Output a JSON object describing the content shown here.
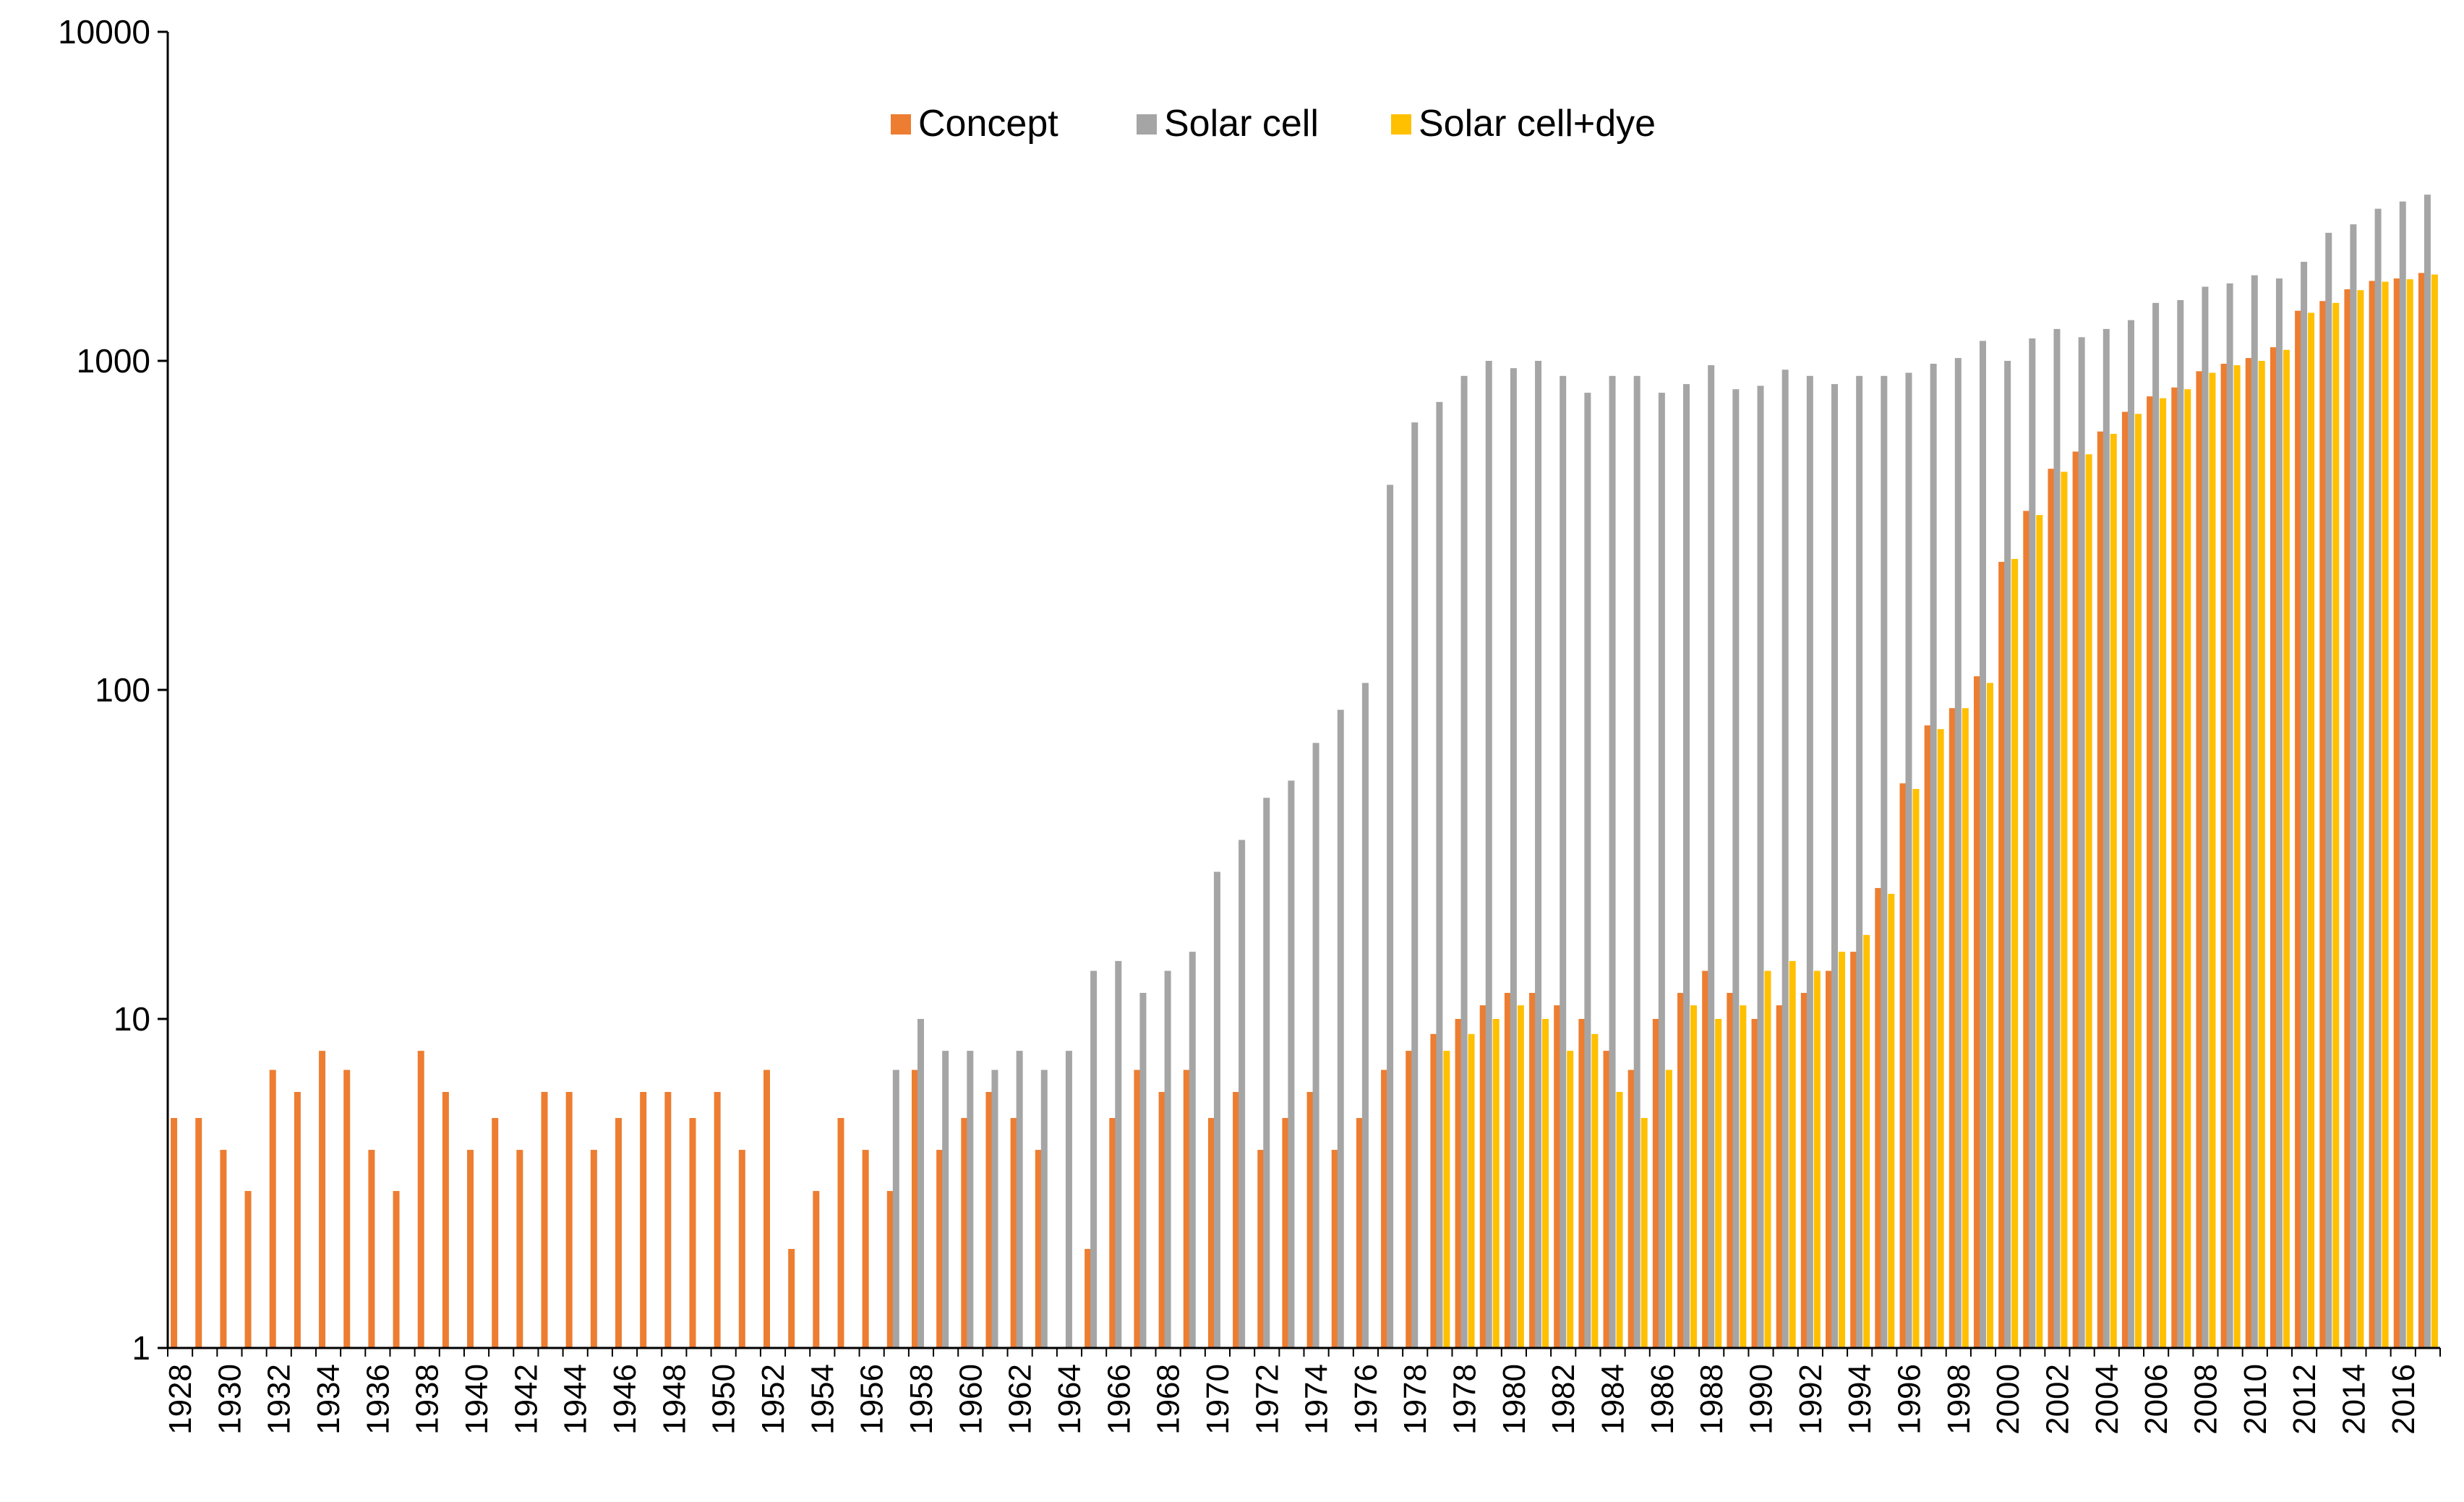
{
  "chart_data": {
    "type": "bar",
    "log_scale": true,
    "grid": false,
    "legend": "top-center",
    "categories": [
      "1928",
      null,
      "1930",
      null,
      "1932",
      null,
      "1934",
      null,
      "1936",
      null,
      "1938",
      null,
      "1940",
      null,
      "1942",
      null,
      "1944",
      null,
      "1946",
      null,
      "1948",
      null,
      "1950",
      null,
      "1952",
      null,
      "1954",
      null,
      "1956",
      null,
      "1958",
      null,
      "1960",
      null,
      "1962",
      null,
      "1964",
      null,
      "1966",
      null,
      "1968",
      null,
      "1970",
      null,
      "1972",
      null,
      "1974",
      null,
      "1976",
      null,
      "1978",
      null,
      "1978",
      null,
      "1980",
      null,
      "1982",
      null,
      "1984",
      null,
      "1986",
      null,
      "1988",
      null,
      "1990",
      null,
      "1992",
      null,
      "1994",
      null,
      "1996",
      null,
      "1998",
      null,
      "2000",
      null,
      "2002",
      null,
      "2004",
      null,
      "2006",
      null,
      "2008",
      null,
      "2010",
      null,
      "2012",
      null,
      "2014",
      null,
      "2016",
      null
    ],
    "series": [
      {
        "name": "Concept",
        "color": "#ed7d31",
        "values": [
          5,
          5,
          4,
          3,
          7,
          6,
          8,
          7,
          4,
          3,
          8,
          6,
          4,
          5,
          4,
          6,
          6,
          4,
          5,
          6,
          6,
          5,
          6,
          4,
          7,
          2,
          3,
          5,
          4,
          3,
          7,
          4,
          5,
          6,
          5,
          4,
          null,
          2,
          5,
          7,
          6,
          7,
          5,
          6,
          4,
          5,
          6,
          4,
          5,
          7,
          8,
          9,
          10,
          11,
          12,
          12,
          11,
          10,
          8,
          7,
          10,
          12,
          14,
          12,
          10,
          11,
          12,
          14,
          16,
          25,
          52,
          78,
          88,
          110,
          245,
          350,
          470,
          530,
          610,
          700,
          780,
          830,
          930,
          980,
          1020,
          1100,
          1420,
          1520,
          1650,
          1750,
          1780,
          1850
        ]
      },
      {
        "name": "Solar cell",
        "color": "#a5a5a5",
        "values": [
          null,
          null,
          null,
          null,
          null,
          null,
          null,
          null,
          null,
          null,
          null,
          null,
          null,
          null,
          null,
          null,
          null,
          null,
          null,
          null,
          null,
          null,
          null,
          null,
          null,
          null,
          null,
          null,
          null,
          7,
          10,
          8,
          8,
          7,
          8,
          7,
          8,
          14,
          15,
          12,
          14,
          16,
          28,
          35,
          47,
          53,
          69,
          87,
          105,
          420,
          650,
          750,
          900,
          1000,
          950,
          1000,
          900,
          800,
          900,
          900,
          800,
          850,
          970,
          820,
          840,
          940,
          900,
          850,
          900,
          900,
          920,
          980,
          1020,
          1150,
          1000,
          1170,
          1250,
          1180,
          1250,
          1330,
          1500,
          1530,
          1680,
          1720,
          1820,
          1780,
          2000,
          2450,
          2600,
          2900,
          3050,
          3200
        ]
      },
      {
        "name": "Solar cell+dye",
        "color": "#ffc000",
        "values": [
          null,
          null,
          null,
          null,
          null,
          null,
          null,
          null,
          null,
          null,
          null,
          null,
          null,
          null,
          null,
          null,
          null,
          null,
          null,
          null,
          null,
          null,
          null,
          null,
          null,
          null,
          null,
          null,
          null,
          null,
          null,
          null,
          null,
          null,
          null,
          null,
          null,
          null,
          null,
          null,
          null,
          null,
          null,
          null,
          null,
          null,
          null,
          null,
          null,
          null,
          null,
          8,
          9,
          10,
          11,
          10,
          8,
          9,
          6,
          5,
          7,
          11,
          10,
          11,
          14,
          15,
          14,
          16,
          18,
          24,
          50,
          76,
          88,
          105,
          250,
          340,
          460,
          520,
          600,
          690,
          770,
          820,
          920,
          970,
          1000,
          1080,
          1400,
          1500,
          1640,
          1740,
          1770,
          1830
        ]
      }
    ],
    "ylim": [
      1,
      10000
    ],
    "yticks": [
      1,
      10,
      100,
      1000,
      10000
    ]
  }
}
